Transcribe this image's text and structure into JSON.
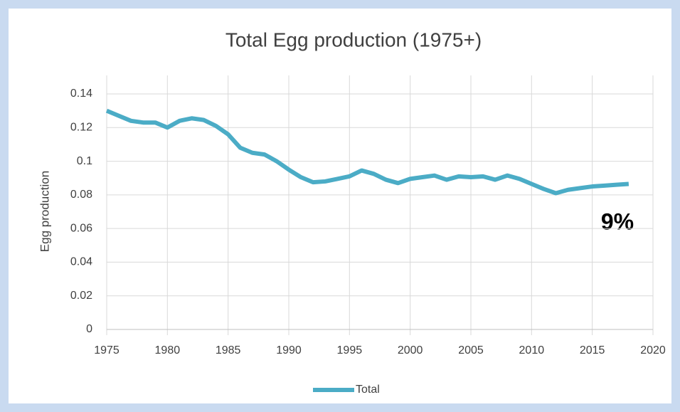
{
  "chart_data": {
    "type": "line",
    "title": "Total Egg production (1975+)",
    "y_label": "Egg production",
    "annotation": "9%",
    "x": [
      1975,
      1976,
      1977,
      1978,
      1979,
      1980,
      1981,
      1982,
      1983,
      1984,
      1985,
      1986,
      1987,
      1988,
      1989,
      1990,
      1991,
      1992,
      1993,
      1994,
      1995,
      1996,
      1997,
      1998,
      1999,
      2000,
      2001,
      2002,
      2003,
      2004,
      2005,
      2006,
      2007,
      2008,
      2009,
      2010,
      2011,
      2012,
      2013,
      2014,
      2015,
      2016,
      2017,
      2018
    ],
    "series": [
      {
        "name": "Total",
        "color": "#4bacc6",
        "values": [
          0.13,
          0.127,
          0.124,
          0.123,
          0.123,
          0.12,
          0.124,
          0.1255,
          0.1245,
          0.121,
          0.116,
          0.108,
          0.105,
          0.104,
          0.1,
          0.095,
          0.0905,
          0.0875,
          0.088,
          0.0895,
          0.091,
          0.0945,
          0.0925,
          0.089,
          0.087,
          0.0895,
          0.0905,
          0.0915,
          0.089,
          0.091,
          0.0905,
          0.091,
          0.089,
          0.0915,
          0.0895,
          0.0865,
          0.0835,
          0.081,
          0.083,
          0.084,
          0.085,
          0.0855,
          0.086,
          0.0865
        ]
      }
    ],
    "xlim": [
      1975,
      2020
    ],
    "xticks": [
      1975,
      1980,
      1985,
      1990,
      1995,
      2000,
      2005,
      2010,
      2015,
      2020
    ],
    "ylim": [
      0,
      0.14
    ],
    "yticks": [
      0,
      0.02,
      0.04,
      0.06,
      0.08,
      0.1,
      0.12,
      0.14
    ],
    "grid": true,
    "legend": "bottom"
  }
}
